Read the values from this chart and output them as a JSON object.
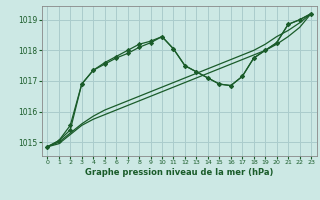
{
  "bg_color": "#cce8e4",
  "grid_color": "#aacccc",
  "line_color": "#1a5c2a",
  "title": "Graphe pression niveau de la mer (hPa)",
  "xlim": [
    -0.5,
    23.5
  ],
  "ylim": [
    1014.55,
    1019.45
  ],
  "yticks": [
    1015,
    1016,
    1017,
    1018,
    1019
  ],
  "xticks": [
    0,
    1,
    2,
    3,
    4,
    5,
    6,
    7,
    8,
    9,
    10,
    11,
    12,
    13,
    14,
    15,
    16,
    17,
    18,
    19,
    20,
    21,
    22,
    23
  ],
  "series1_y": [
    1014.85,
    1014.95,
    1015.25,
    1015.55,
    1015.75,
    1015.9,
    1016.05,
    1016.2,
    1016.35,
    1016.5,
    1016.65,
    1016.8,
    1016.95,
    1017.1,
    1017.25,
    1017.4,
    1017.55,
    1017.7,
    1017.85,
    1018.0,
    1018.2,
    1018.45,
    1018.75,
    1019.2
  ],
  "series2_y": [
    1014.85,
    1015.0,
    1015.3,
    1015.6,
    1015.85,
    1016.05,
    1016.2,
    1016.35,
    1016.5,
    1016.65,
    1016.8,
    1016.95,
    1017.1,
    1017.25,
    1017.4,
    1017.55,
    1017.7,
    1017.85,
    1018.0,
    1018.2,
    1018.45,
    1018.65,
    1018.9,
    1019.2
  ],
  "series3_y": [
    1014.85,
    1015.05,
    1015.55,
    1016.9,
    1017.35,
    1017.6,
    1017.8,
    1018.0,
    1018.2,
    1018.3,
    1018.45,
    1018.05,
    1017.5,
    1017.3,
    1017.1,
    1016.9,
    1016.85,
    1017.15,
    1017.75,
    1018.0,
    1018.25,
    1018.85,
    1019.0,
    1019.2
  ],
  "series4_y": [
    1014.85,
    1015.05,
    1015.4,
    1016.9,
    1017.35,
    1017.55,
    1017.75,
    1017.9,
    1018.1,
    1018.25,
    1018.45,
    1018.05,
    1017.5,
    1017.3,
    1017.1,
    1016.9,
    1016.85,
    1017.15,
    1017.75,
    1018.0,
    1018.25,
    1018.85,
    1019.0,
    1019.2
  ]
}
